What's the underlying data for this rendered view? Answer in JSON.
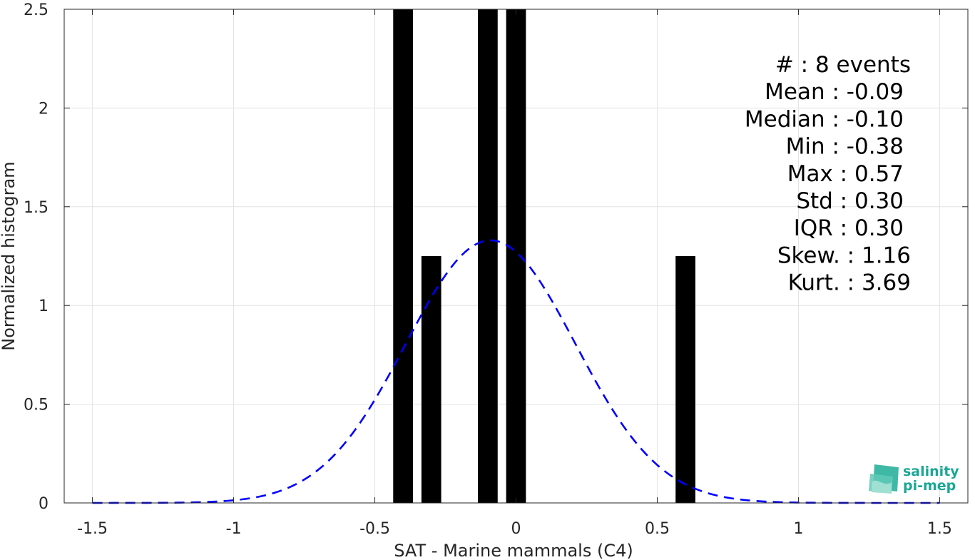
{
  "chart_data": {
    "type": "bar",
    "xlabel": "SAT - Marine mammals (C4)",
    "ylabel": "Normalized histogram",
    "xlim": [
      -1.6,
      1.6
    ],
    "ylim": [
      0,
      2.5
    ],
    "xticks": [
      -1.5,
      -1,
      -0.5,
      0,
      0.5,
      1,
      1.5
    ],
    "xtick_labels": [
      "-1.5",
      "-1",
      "-0.5",
      "0",
      "0.5",
      "1",
      "1.5"
    ],
    "yticks": [
      0,
      0.5,
      1,
      1.5,
      2,
      2.5
    ],
    "ytick_labels": [
      "0",
      "0.5",
      "1",
      "1.5",
      "2",
      "2.5"
    ],
    "grid": true,
    "bin_width": 0.07,
    "bars": [
      {
        "x": -0.4,
        "y": 2.5
      },
      {
        "x": -0.3,
        "y": 1.25
      },
      {
        "x": -0.1,
        "y": 2.5
      },
      {
        "x": 0.0,
        "y": 2.5
      },
      {
        "x": 0.6,
        "y": 1.25
      }
    ],
    "fit_curve": {
      "style": "dashed",
      "color": "#0000ff",
      "mean": -0.09,
      "std": 0.3,
      "x_range": [
        -1.5,
        1.5
      ]
    },
    "stats": [
      {
        "text": "#  : 8 events",
        "align": "end"
      },
      {
        "text": "Mean : -0.09",
        "align": "end"
      },
      {
        "text": "Median : -0.10",
        "align": "end"
      },
      {
        "text": "Min : -0.38",
        "align": "end"
      },
      {
        "text": "Max : 0.57",
        "align": "end"
      },
      {
        "text": "Std : 0.30",
        "align": "end"
      },
      {
        "text": "IQR : 0.30",
        "align": "end"
      },
      {
        "text": "Skew. : 1.16",
        "align": "end"
      },
      {
        "text": "Kurt. : 3.69",
        "align": "end"
      }
    ],
    "bar_color": "#000000"
  },
  "logo": {
    "line1": "salinity",
    "line2": "pi-mep",
    "color": "#1aa795"
  }
}
